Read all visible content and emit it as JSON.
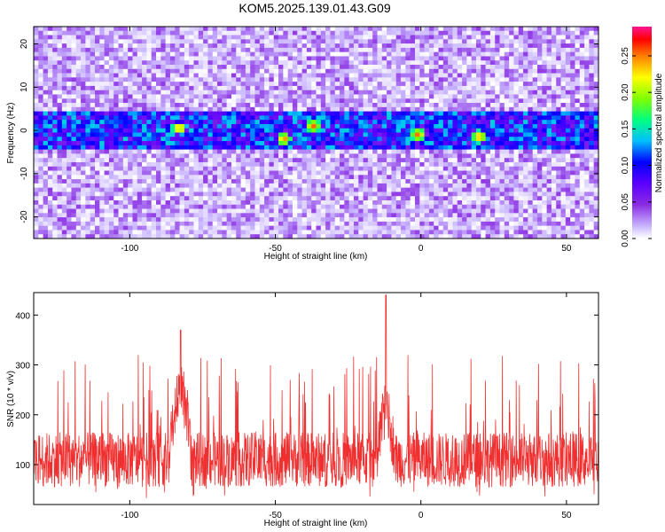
{
  "title": "KOM5.2025.139.01.43.G09",
  "chart_data": [
    {
      "type": "heatmap",
      "xlabel": "Height of straight line (km)",
      "ylabel": "Frequency (Hz)",
      "xlim": [
        -133,
        61
      ],
      "ylim": [
        -25,
        24
      ],
      "xticks": [
        -100,
        -50,
        0,
        50
      ],
      "yticks": [
        -20,
        -10,
        0,
        10,
        20
      ],
      "colorbar": {
        "label": "Normalized spectral amplitude",
        "range": [
          0.0,
          0.29
        ],
        "ticks": [
          0.0,
          0.05,
          0.1,
          0.15,
          0.2,
          0.25
        ],
        "tick_labels": [
          "0.00",
          "0.05",
          "0.10",
          "0.15",
          "0.20",
          "0.25"
        ],
        "colormap": [
          "#ffffff",
          "#c8b4ff",
          "#8a2be2",
          "#5a00ff",
          "#0000ff",
          "#00bfff",
          "#00ff80",
          "#80ff00",
          "#ffff00",
          "#ff8000",
          "#ff0000",
          "#ff1493"
        ]
      },
      "signal_band": {
        "center_hz": 0,
        "half_width_hz": 4,
        "peak_amplitude": 0.25
      },
      "peaks": [
        {
          "x": -83,
          "y": 0.5
        },
        {
          "x": -47,
          "y": -2
        },
        {
          "x": -37,
          "y": 1
        },
        {
          "x": -1,
          "y": -1
        },
        {
          "x": 20,
          "y": -1.5
        }
      ]
    },
    {
      "type": "line",
      "xlabel": "Height of straight line (km)",
      "ylabel": "SNR (10 * v/v)",
      "xlim": [
        -133,
        61
      ],
      "ylim": [
        20,
        445
      ],
      "xticks": [
        -100,
        -50,
        0,
        50
      ],
      "yticks": [
        100,
        200,
        300,
        400
      ],
      "series": [
        {
          "color": "#f03030",
          "baseline": 110,
          "noise_range": [
            30,
            320
          ],
          "bursts": [
            {
              "x_from": -86,
              "x_to": -79,
              "level": 260,
              "max": 370
            },
            {
              "x_from": -15,
              "x_to": -9,
              "level": 220,
              "max": 440
            }
          ]
        }
      ]
    }
  ]
}
